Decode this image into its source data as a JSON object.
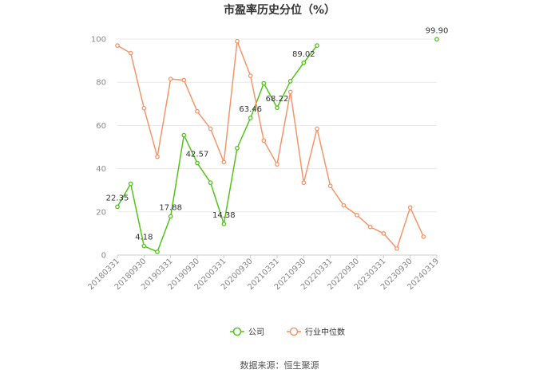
{
  "chart_data": {
    "type": "line",
    "title": "市盈率历史分位（%）",
    "xlabel": "",
    "ylabel": "",
    "ylim": [
      0,
      100
    ],
    "yticks": [
      0,
      20,
      40,
      60,
      80,
      100
    ],
    "grid": true,
    "legend": "bottom",
    "x": [
      "20180331",
      "20180630",
      "20180930",
      "20181231",
      "20190331",
      "20190630",
      "20190930",
      "20191231",
      "20200331",
      "20200630",
      "20200930",
      "20201231",
      "20210331",
      "20210630",
      "20210930",
      "20211231",
      "20220331",
      "20220630",
      "20220930",
      "20221231",
      "20230331",
      "20230630",
      "20230930",
      "20231231",
      "20240319"
    ],
    "xtick_labels": [
      "20180331",
      "20180930",
      "20190331",
      "20190930",
      "20200331",
      "20200930",
      "20210331",
      "20210930",
      "20220331",
      "20220930",
      "20230331",
      "20230930",
      "20240319"
    ],
    "series": [
      {
        "name": "公司",
        "color": "#52c41a",
        "values": [
          22.35,
          33,
          4.18,
          1.5,
          17.88,
          55.5,
          42.57,
          33.5,
          14.38,
          49.5,
          63.46,
          79.5,
          68.22,
          80.5,
          89.02,
          97,
          null,
          null,
          null,
          null,
          null,
          null,
          null,
          null,
          99.9
        ],
        "labels": [
          {
            "index": 0,
            "text": "22.35"
          },
          {
            "index": 2,
            "text": "4.18"
          },
          {
            "index": 4,
            "text": "17.88"
          },
          {
            "index": 6,
            "text": "42.57"
          },
          {
            "index": 8,
            "text": "14.38"
          },
          {
            "index": 10,
            "text": "63.46"
          },
          {
            "index": 12,
            "text": "68.22"
          },
          {
            "index": 14,
            "text": "89.02"
          },
          {
            "index": 24,
            "text": "99.90"
          }
        ]
      },
      {
        "name": "行业中位数",
        "color": "#f4956a",
        "values": [
          97,
          93.5,
          68,
          45.5,
          81.5,
          81,
          66.5,
          58.5,
          43,
          99,
          83,
          53,
          42,
          75.5,
          33.5,
          58.5,
          32,
          23,
          18.5,
          13,
          10,
          3,
          22,
          8.5,
          null
        ]
      }
    ]
  },
  "source": "数据来源：恒生聚源"
}
